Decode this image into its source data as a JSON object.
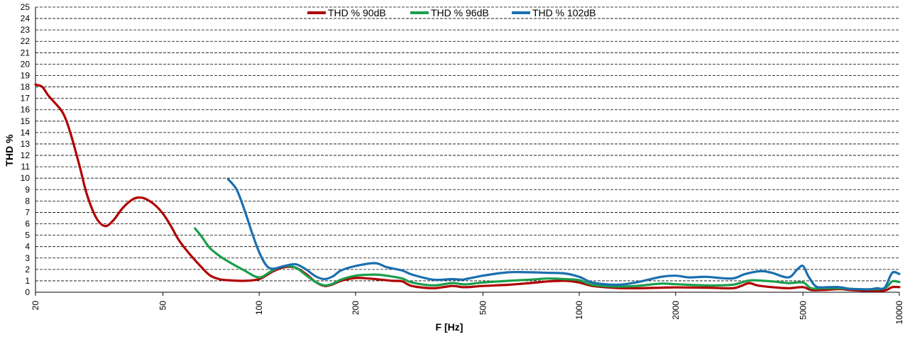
{
  "chart_data": {
    "type": "line",
    "title": "",
    "xlabel": "F [Hz]",
    "ylabel": "THD %",
    "x_scale": "log",
    "xlim": [
      20,
      10000
    ],
    "ylim": [
      0,
      25
    ],
    "x_ticks": [
      20,
      50,
      100,
      200,
      500,
      1000,
      2000,
      5000,
      10000
    ],
    "x_tick_labels": [
      "20",
      "50",
      "100",
      "200",
      "500",
      "1000",
      "2000",
      "5000",
      "10000"
    ],
    "y_ticks": [
      0,
      1,
      2,
      3,
      4,
      5,
      6,
      7,
      8,
      9,
      10,
      11,
      12,
      13,
      14,
      15,
      16,
      17,
      18,
      19,
      20,
      21,
      22,
      23,
      24,
      25
    ],
    "y_tick_labels": [
      "0",
      "1",
      "2",
      "3",
      "4",
      "5",
      "6",
      "7",
      "8",
      "9",
      "10",
      "11",
      "12",
      "13",
      "14",
      "15",
      "16",
      "17",
      "18",
      "19",
      "20",
      "21",
      "22",
      "23",
      "24",
      "25"
    ],
    "grid": "horizontal dashed",
    "legend_position": "top-center",
    "series": [
      {
        "name": "THD % 90dB",
        "color": "#b00000",
        "points": [
          [
            20,
            18.2
          ],
          [
            21,
            18.0
          ],
          [
            22,
            17.2
          ],
          [
            24,
            16.0
          ],
          [
            25,
            15.0
          ],
          [
            26,
            13.5
          ],
          [
            27.5,
            11.0
          ],
          [
            29,
            8.5
          ],
          [
            31,
            6.5
          ],
          [
            33,
            5.8
          ],
          [
            35,
            6.3
          ],
          [
            37.5,
            7.4
          ],
          [
            40,
            8.1
          ],
          [
            42,
            8.3
          ],
          [
            44,
            8.2
          ],
          [
            47,
            7.7
          ],
          [
            50,
            6.9
          ],
          [
            53,
            5.8
          ],
          [
            56,
            4.6
          ],
          [
            60,
            3.5
          ],
          [
            65,
            2.4
          ],
          [
            70,
            1.5
          ],
          [
            75,
            1.15
          ],
          [
            80,
            1.05
          ],
          [
            90,
            1.0
          ],
          [
            100,
            1.15
          ],
          [
            110,
            1.8
          ],
          [
            120,
            2.2
          ],
          [
            130,
            2.15
          ],
          [
            140,
            1.6
          ],
          [
            150,
            0.9
          ],
          [
            160,
            0.55
          ],
          [
            170,
            0.7
          ],
          [
            180,
            1.0
          ],
          [
            200,
            1.25
          ],
          [
            220,
            1.2
          ],
          [
            240,
            1.1
          ],
          [
            260,
            1.0
          ],
          [
            280,
            0.95
          ],
          [
            300,
            0.55
          ],
          [
            350,
            0.35
          ],
          [
            400,
            0.55
          ],
          [
            430,
            0.45
          ],
          [
            450,
            0.45
          ],
          [
            500,
            0.55
          ],
          [
            600,
            0.65
          ],
          [
            700,
            0.8
          ],
          [
            800,
            0.95
          ],
          [
            900,
            1.0
          ],
          [
            1000,
            0.85
          ],
          [
            1100,
            0.55
          ],
          [
            1300,
            0.38
          ],
          [
            1500,
            0.35
          ],
          [
            1800,
            0.4
          ],
          [
            2000,
            0.42
          ],
          [
            2500,
            0.4
          ],
          [
            3000,
            0.35
          ],
          [
            3200,
            0.55
          ],
          [
            3400,
            0.8
          ],
          [
            3600,
            0.6
          ],
          [
            4000,
            0.45
          ],
          [
            4500,
            0.35
          ],
          [
            5000,
            0.45
          ],
          [
            5300,
            0.2
          ],
          [
            5800,
            0.2
          ],
          [
            6500,
            0.28
          ],
          [
            7000,
            0.2
          ],
          [
            8000,
            0.12
          ],
          [
            9000,
            0.15
          ],
          [
            9500,
            0.45
          ],
          [
            10000,
            0.45
          ]
        ]
      },
      {
        "name": "THD % 96dB",
        "color": "#1a9e4b",
        "points": [
          [
            63,
            5.6
          ],
          [
            66,
            4.9
          ],
          [
            70,
            3.9
          ],
          [
            75,
            3.2
          ],
          [
            80,
            2.7
          ],
          [
            90,
            1.9
          ],
          [
            100,
            1.3
          ],
          [
            110,
            1.9
          ],
          [
            120,
            2.3
          ],
          [
            130,
            2.15
          ],
          [
            140,
            1.5
          ],
          [
            150,
            0.9
          ],
          [
            160,
            0.6
          ],
          [
            170,
            0.75
          ],
          [
            180,
            1.1
          ],
          [
            200,
            1.45
          ],
          [
            230,
            1.55
          ],
          [
            250,
            1.45
          ],
          [
            280,
            1.2
          ],
          [
            300,
            0.85
          ],
          [
            350,
            0.6
          ],
          [
            400,
            0.8
          ],
          [
            430,
            0.7
          ],
          [
            450,
            0.7
          ],
          [
            500,
            0.85
          ],
          [
            600,
            1.0
          ],
          [
            700,
            1.1
          ],
          [
            800,
            1.2
          ],
          [
            900,
            1.15
          ],
          [
            1000,
            1.05
          ],
          [
            1100,
            0.65
          ],
          [
            1300,
            0.5
          ],
          [
            1500,
            0.55
          ],
          [
            1800,
            0.75
          ],
          [
            2000,
            0.7
          ],
          [
            2500,
            0.6
          ],
          [
            3000,
            0.65
          ],
          [
            3300,
            0.95
          ],
          [
            3500,
            1.05
          ],
          [
            4000,
            0.95
          ],
          [
            4500,
            0.8
          ],
          [
            5000,
            0.85
          ],
          [
            5300,
            0.35
          ],
          [
            5800,
            0.35
          ],
          [
            6500,
            0.35
          ],
          [
            7000,
            0.3
          ],
          [
            8000,
            0.25
          ],
          [
            9000,
            0.35
          ],
          [
            9500,
            0.95
          ],
          [
            10000,
            0.9
          ]
        ]
      },
      {
        "name": "THD % 102dB",
        "color": "#1a6fb0",
        "points": [
          [
            80,
            9.9
          ],
          [
            85,
            9.0
          ],
          [
            90,
            7.2
          ],
          [
            95,
            5.2
          ],
          [
            100,
            3.5
          ],
          [
            105,
            2.4
          ],
          [
            110,
            2.05
          ],
          [
            120,
            2.3
          ],
          [
            130,
            2.45
          ],
          [
            140,
            2.0
          ],
          [
            150,
            1.4
          ],
          [
            160,
            1.15
          ],
          [
            170,
            1.4
          ],
          [
            180,
            1.9
          ],
          [
            200,
            2.3
          ],
          [
            230,
            2.55
          ],
          [
            250,
            2.2
          ],
          [
            280,
            1.9
          ],
          [
            300,
            1.55
          ],
          [
            350,
            1.1
          ],
          [
            400,
            1.15
          ],
          [
            430,
            1.1
          ],
          [
            450,
            1.2
          ],
          [
            500,
            1.45
          ],
          [
            600,
            1.75
          ],
          [
            700,
            1.75
          ],
          [
            800,
            1.7
          ],
          [
            900,
            1.65
          ],
          [
            1000,
            1.35
          ],
          [
            1100,
            0.85
          ],
          [
            1300,
            0.65
          ],
          [
            1500,
            0.85
          ],
          [
            1800,
            1.35
          ],
          [
            2000,
            1.45
          ],
          [
            2200,
            1.3
          ],
          [
            2500,
            1.35
          ],
          [
            3000,
            1.2
          ],
          [
            3300,
            1.6
          ],
          [
            3700,
            1.85
          ],
          [
            4000,
            1.7
          ],
          [
            4500,
            1.3
          ],
          [
            4800,
            2.0
          ],
          [
            5000,
            2.3
          ],
          [
            5200,
            1.4
          ],
          [
            5500,
            0.5
          ],
          [
            6000,
            0.45
          ],
          [
            6500,
            0.45
          ],
          [
            7000,
            0.3
          ],
          [
            8000,
            0.25
          ],
          [
            8500,
            0.35
          ],
          [
            9000,
            0.4
          ],
          [
            9500,
            1.7
          ],
          [
            10000,
            1.6
          ]
        ]
      }
    ]
  }
}
